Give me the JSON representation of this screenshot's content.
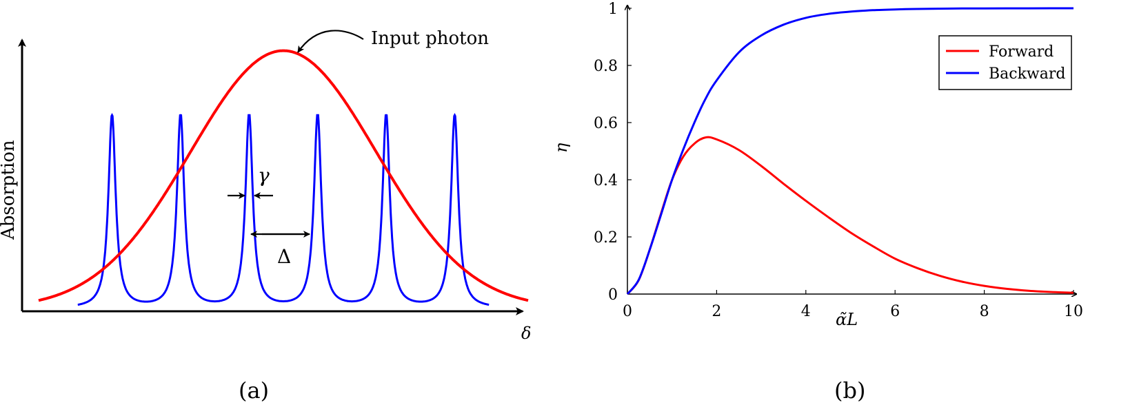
{
  "panel_a": {
    "caption": "(a)",
    "ylabel": "Absorption",
    "xlabel": "δ",
    "annotation_photon": "Input photon",
    "annotation_gamma": "γ",
    "annotation_delta": "Δ",
    "colors": {
      "photon": "#ff0000",
      "comb": "#0000ff"
    }
  },
  "panel_b": {
    "caption": "(b)",
    "colors": {
      "forward": "#ff0000",
      "backward": "#0000ff"
    }
  },
  "chart_data": [
    {
      "type": "line",
      "title": "",
      "xlabel": "δ",
      "ylabel": "Absorption",
      "series": [
        {
          "name": "Input photon",
          "shape": "gaussian",
          "peak_x": 0,
          "peak_y": 0.96,
          "sigma": 0.95,
          "x_range": [
            -2.5,
            2.5
          ]
        },
        {
          "shape": "comb",
          "peak_positions": [
            -1.75,
            -1.05,
            -0.35,
            0.35,
            1.05,
            1.75
          ],
          "peak_height": 0.72,
          "x_range": [
            -2.1,
            2.1
          ]
        }
      ],
      "annotations": [
        "Input photon",
        "γ",
        "Δ"
      ],
      "grid": false
    },
    {
      "type": "line",
      "title": "",
      "xlabel": "α̃L",
      "ylabel": "η",
      "xlim": [
        0,
        10
      ],
      "ylim": [
        0,
        1
      ],
      "xticks": [
        0,
        2,
        4,
        6,
        8,
        10
      ],
      "yticks": [
        0,
        0.2,
        0.4,
        0.6,
        0.8,
        1
      ],
      "grid": false,
      "legend_position": "top-right",
      "series": [
        {
          "name": "Forward",
          "x": [
            0,
            0.25,
            0.5,
            0.75,
            1,
            1.25,
            1.5,
            1.75,
            2,
            2.5,
            3,
            3.5,
            4,
            4.5,
            5,
            5.5,
            6,
            6.5,
            7,
            7.5,
            8,
            8.5,
            9,
            9.5,
            10
          ],
          "y": [
            0,
            0.048,
            0.155,
            0.28,
            0.3996,
            0.4806,
            0.5263,
            0.548,
            0.5413,
            0.5039,
            0.4481,
            0.3861,
            0.3263,
            0.2695,
            0.2155,
            0.1677,
            0.1239,
            0.0908,
            0.064,
            0.0434,
            0.0287,
            0.0184,
            0.0115,
            0.0072,
            0.0045
          ]
        },
        {
          "name": "Backward",
          "x": [
            0,
            0.25,
            0.5,
            0.75,
            1,
            1.25,
            1.5,
            1.75,
            2,
            2.5,
            3,
            3.5,
            4,
            4.5,
            5,
            5.5,
            6,
            6.5,
            7,
            7.5,
            8,
            8.5,
            9,
            9.5,
            10
          ],
          "y": [
            0,
            0.049,
            0.155,
            0.276,
            0.3996,
            0.5054,
            0.5997,
            0.6827,
            0.7477,
            0.846,
            0.9048,
            0.9426,
            0.9664,
            0.9802,
            0.9883,
            0.9932,
            0.996,
            0.9977,
            0.9986,
            0.9992,
            0.9995,
            0.9997,
            0.9998,
            0.9999,
            1.0
          ]
        }
      ]
    }
  ]
}
